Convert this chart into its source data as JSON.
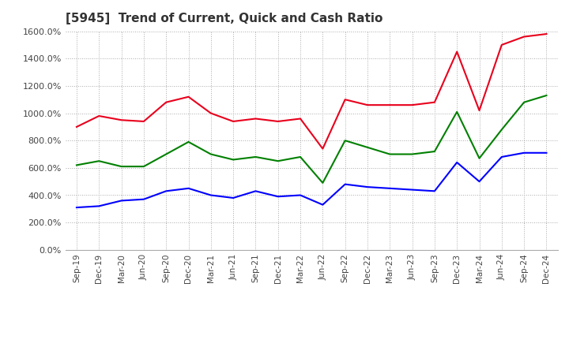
{
  "title": "[5945]  Trend of Current, Quick and Cash Ratio",
  "x_labels": [
    "Sep-19",
    "Dec-19",
    "Mar-20",
    "Jun-20",
    "Sep-20",
    "Dec-20",
    "Mar-21",
    "Jun-21",
    "Sep-21",
    "Dec-21",
    "Mar-22",
    "Jun-22",
    "Sep-22",
    "Dec-22",
    "Mar-23",
    "Jun-23",
    "Sep-23",
    "Dec-23",
    "Mar-24",
    "Jun-24",
    "Sep-24",
    "Dec-24"
  ],
  "current_ratio": [
    900,
    980,
    950,
    940,
    1080,
    1120,
    1000,
    940,
    960,
    940,
    960,
    740,
    1100,
    1060,
    1060,
    1060,
    1080,
    1450,
    1020,
    1500,
    1560,
    1580
  ],
  "quick_ratio": [
    620,
    650,
    610,
    610,
    700,
    790,
    700,
    660,
    680,
    650,
    680,
    490,
    800,
    750,
    700,
    700,
    720,
    1010,
    670,
    880,
    1080,
    1130
  ],
  "cash_ratio": [
    310,
    320,
    360,
    370,
    430,
    450,
    400,
    380,
    430,
    390,
    400,
    330,
    480,
    460,
    450,
    440,
    430,
    640,
    500,
    680,
    710,
    710
  ],
  "current_color": "#e8001c",
  "quick_color": "#008000",
  "cash_color": "#0000ff",
  "ylim": [
    0,
    1600
  ],
  "yticks": [
    0,
    200,
    400,
    600,
    800,
    1000,
    1200,
    1400,
    1600
  ],
  "background_color": "#ffffff",
  "grid_color": "#aaaaaa"
}
